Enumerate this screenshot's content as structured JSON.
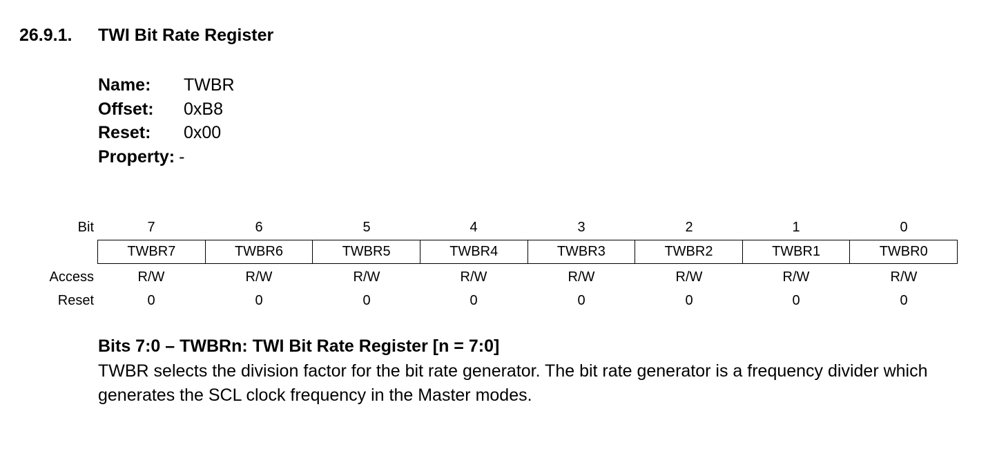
{
  "section": {
    "number": "26.9.1.",
    "title": "TWI Bit Rate Register"
  },
  "meta": [
    {
      "label": "Name:",
      "value": "TWBR"
    },
    {
      "label": "Offset:",
      "value": "0xB8"
    },
    {
      "label": "Reset:",
      "value": "0x00"
    },
    {
      "label": "Property:",
      "value": "-"
    }
  ],
  "register": {
    "bit_label": "Bit",
    "access_label": "Access",
    "reset_label": "Reset",
    "bits": [
      "7",
      "6",
      "5",
      "4",
      "3",
      "2",
      "1",
      "0"
    ],
    "fields": [
      "TWBR7",
      "TWBR6",
      "TWBR5",
      "TWBR4",
      "TWBR3",
      "TWBR2",
      "TWBR1",
      "TWBR0"
    ],
    "access": [
      "R/W",
      "R/W",
      "R/W",
      "R/W",
      "R/W",
      "R/W",
      "R/W",
      "R/W"
    ],
    "reset": [
      "0",
      "0",
      "0",
      "0",
      "0",
      "0",
      "0",
      "0"
    ]
  },
  "bits_description": {
    "title": "Bits 7:0 – TWBRn:  TWI Bit Rate Register [n = 7:0]",
    "text": "TWBR selects the division factor for the bit rate generator. The bit rate generator is a frequency divider which generates the SCL clock frequency in the Master modes."
  }
}
